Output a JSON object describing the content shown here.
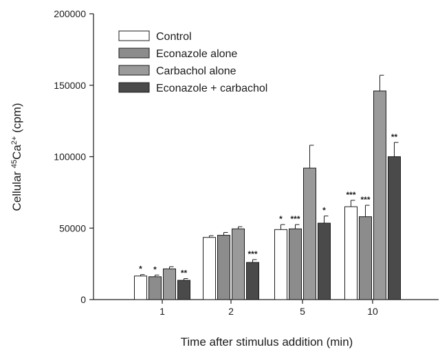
{
  "chart_data": {
    "type": "bar",
    "categories": [
      "1",
      "2",
      "5",
      "10"
    ],
    "xlabel": "Time after stimulus addition (min)",
    "ylabel": {
      "pre": "Cellular ",
      "sup1": "45",
      "mid": "Ca",
      "sup2": "2+",
      "post": " (cpm)"
    },
    "ylim": [
      0,
      200000
    ],
    "yticks": [
      "0",
      "50000",
      "100000",
      "150000",
      "200000"
    ],
    "legend_position": "top-left",
    "series": [
      {
        "name": "Control",
        "color": "#ffffff",
        "values": [
          16500,
          43500,
          49000,
          65000
        ],
        "errors": [
          1000,
          1200,
          3500,
          4500
        ],
        "sig": [
          "*",
          "",
          "*",
          "***"
        ]
      },
      {
        "name": "Econazole alone",
        "color": "#8c8c8c",
        "values": [
          16000,
          45000,
          49500,
          58000
        ],
        "errors": [
          1200,
          2000,
          3000,
          8000
        ],
        "sig": [
          "*",
          "",
          "***",
          "***"
        ]
      },
      {
        "name": "Carbachol alone",
        "color": "#9a9a9a",
        "values": [
          21500,
          49500,
          92000,
          146000
        ],
        "errors": [
          1500,
          1500,
          16000,
          11000
        ],
        "sig": [
          "",
          "",
          "",
          ""
        ]
      },
      {
        "name": "Econazole + carbachol",
        "color": "#4a4a4a",
        "values": [
          13500,
          26000,
          53500,
          100000
        ],
        "errors": [
          1200,
          2000,
          5000,
          10000
        ],
        "sig": [
          "**",
          "***",
          "*",
          "**"
        ]
      }
    ]
  }
}
